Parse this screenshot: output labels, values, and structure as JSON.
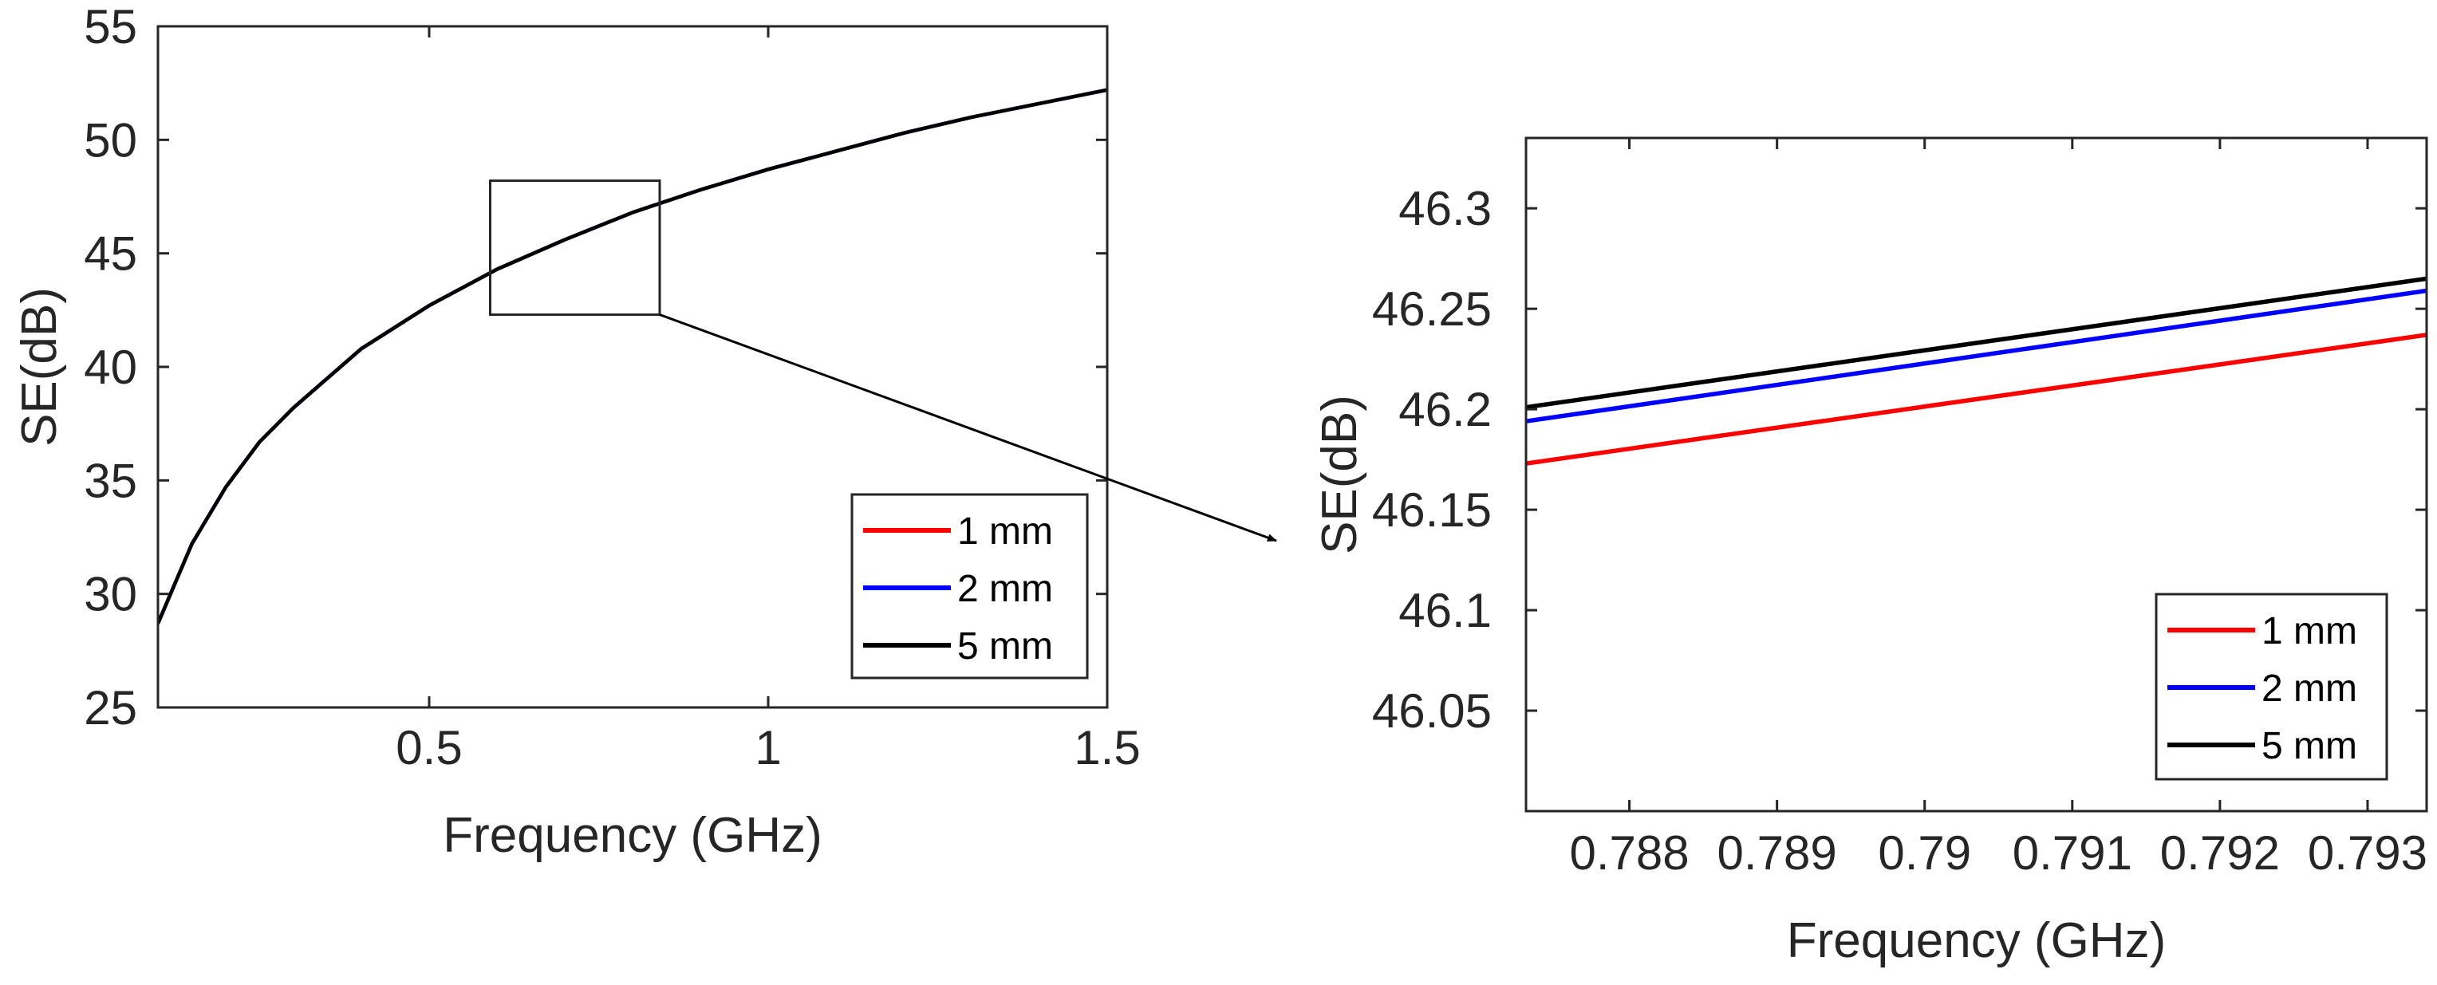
{
  "chart_data": [
    {
      "type": "line",
      "xlabel": "Frequency (GHz)",
      "ylabel": "SE(dB)",
      "xlim": [
        0.1,
        1.5
      ],
      "ylim": [
        25,
        55
      ],
      "xticks": [
        0.5,
        1,
        1.5
      ],
      "xtick_labels": [
        "0.5",
        "1",
        "1.5"
      ],
      "yticks": [
        25,
        30,
        35,
        40,
        45,
        50,
        55
      ],
      "ytick_labels": [
        "25",
        "30",
        "35",
        "40",
        "45",
        "50",
        "55"
      ],
      "grid": false,
      "legend_position": "bottom-right",
      "x": [
        0.1,
        0.15,
        0.2,
        0.25,
        0.3,
        0.4,
        0.5,
        0.6,
        0.7,
        0.8,
        0.9,
        1.0,
        1.1,
        1.2,
        1.3,
        1.4,
        1.5
      ],
      "series": [
        {
          "name": "1 mm",
          "color": "#ff0000",
          "values": [
            28.7,
            32.2,
            34.7,
            36.7,
            38.2,
            40.8,
            42.7,
            44.3,
            45.6,
            46.8,
            47.8,
            48.7,
            49.5,
            50.3,
            51.0,
            51.6,
            52.2
          ]
        },
        {
          "name": "2 mm",
          "color": "#0000ff",
          "values": [
            28.7,
            32.2,
            34.7,
            36.7,
            38.2,
            40.8,
            42.7,
            44.3,
            45.6,
            46.8,
            47.8,
            48.7,
            49.5,
            50.3,
            51.0,
            51.6,
            52.2
          ]
        },
        {
          "name": "5 mm",
          "color": "#000000",
          "values": [
            28.7,
            32.2,
            34.7,
            36.7,
            38.2,
            40.8,
            42.7,
            44.3,
            45.6,
            46.8,
            47.8,
            48.7,
            49.5,
            50.3,
            51.0,
            51.6,
            52.2
          ]
        }
      ],
      "zoom_box": {
        "x": [
          0.59,
          0.84
        ],
        "y": [
          42.3,
          48.2
        ]
      }
    },
    {
      "type": "line",
      "xlabel": "Frequency (GHz)",
      "ylabel": "SE(dB)",
      "xlim": [
        0.7873,
        0.7934
      ],
      "ylim": [
        46.0,
        46.335
      ],
      "xticks": [
        0.788,
        0.789,
        0.79,
        0.791,
        0.792,
        0.793
      ],
      "xtick_labels": [
        "0.788",
        "0.789",
        "0.79",
        "0.791",
        "0.792",
        "0.793"
      ],
      "yticks": [
        46.05,
        46.1,
        46.15,
        46.2,
        46.25,
        46.3
      ],
      "ytick_labels": [
        "46.05",
        "46.1",
        "46.15",
        "46.2",
        "46.25",
        "46.3"
      ],
      "grid": false,
      "legend_position": "bottom-right",
      "x": [
        0.7873,
        0.7934
      ],
      "series": [
        {
          "name": "1 mm",
          "color": "#ff0000",
          "values": [
            46.173,
            46.237
          ]
        },
        {
          "name": "2 mm",
          "color": "#0000ff",
          "values": [
            46.194,
            46.259
          ]
        },
        {
          "name": "5 mm",
          "color": "#000000",
          "values": [
            46.201,
            46.265
          ]
        }
      ]
    }
  ]
}
